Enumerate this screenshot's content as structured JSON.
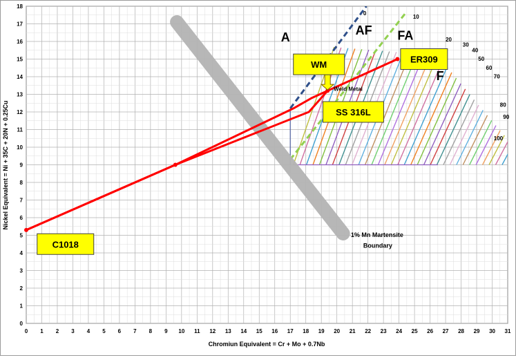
{
  "chart_data": {
    "type": "line",
    "title": "",
    "xlabel": "Chromiun Equivalent = Cr + Mo + 0.7Nb",
    "ylabel": "Nickel Equivalent = Ni + 35C + 20N + 0.25Cu",
    "xlim": [
      0,
      31
    ],
    "ylim": [
      0,
      18
    ],
    "x_ticks": [
      "0",
      "1",
      "2",
      "3",
      "4",
      "5",
      "6",
      "7",
      "8",
      "9",
      "10",
      "11",
      "12",
      "13",
      "14",
      "15",
      "16",
      "17",
      "18",
      "19",
      "20",
      "21",
      "22",
      "23",
      "24",
      "25",
      "26",
      "27",
      "28",
      "29",
      "30",
      "31"
    ],
    "y_ticks": [
      "0",
      "1",
      "2",
      "3",
      "4",
      "5",
      "6",
      "7",
      "8",
      "9",
      "10",
      "11",
      "12",
      "13",
      "14",
      "15",
      "16",
      "17",
      "18"
    ],
    "grid": true,
    "colors": {
      "mixing_line": "#ff0000",
      "martensite_band": "#b4b4b4",
      "callout_fill": "#ffff00",
      "ferrite_lines": [
        "#bfbf40",
        "#d070a0",
        "#40a0d0",
        "#f08020",
        "#80c040",
        "#9060c0",
        "#d04040",
        "#409090",
        "#a0a0a0",
        "#e0b0d0",
        "#60b0e0",
        "#c09060",
        "#70d070",
        "#b070e0",
        "#f0a060"
      ]
    },
    "series": [
      {
        "name": "",
        "points": [
          {
            "x": 0,
            "y": 5.3
          },
          {
            "x": 9.6,
            "y": 9.0
          },
          {
            "x": 17.2,
            "y": 12.2
          },
          {
            "x": 18.4,
            "y": 12.8
          },
          {
            "x": 19.4,
            "y": 13.2
          },
          {
            "x": 23.9,
            "y": 15.0
          }
        ]
      },
      {
        "name": "",
        "points": [
          {
            "x": 0,
            "y": 5.3
          },
          {
            "x": 9.6,
            "y": 9.0
          },
          {
            "x": 18.2,
            "y": 12.0
          },
          {
            "x": 19.4,
            "y": 13.2
          }
        ]
      }
    ],
    "markers": [
      {
        "x": 0,
        "y": 5.3
      },
      {
        "x": 9.6,
        "y": 9.0
      },
      {
        "x": 19.4,
        "y": 13.2
      },
      {
        "x": 23.9,
        "y": 15.0
      }
    ],
    "phase_boundaries": [
      {
        "label": "A",
        "color": "#2e4f8a",
        "dashed": true,
        "from": {
          "x": 17,
          "y": 12.2
        },
        "to": {
          "x": 21.9,
          "y": 18
        }
      },
      {
        "label": "AF",
        "color": "#92d050",
        "dashed": true,
        "from": {
          "x": 17,
          "y": 9.3
        },
        "to": {
          "x": 24.5,
          "y": 17.7
        }
      },
      {
        "label": "FA",
        "color": "",
        "dashed": false,
        "from": {
          "x": 17,
          "y": 9.0
        },
        "to": {
          "x": 26.5,
          "y": 16.4
        }
      },
      {
        "label": "F",
        "color": "",
        "dashed": false,
        "from": {
          "x": 24.0,
          "y": 9.0
        },
        "to": {
          "x": 27.2,
          "y": 14.3
        }
      }
    ],
    "ferrite_number_labels": [
      {
        "text": "0",
        "x": 21.7,
        "y": 17.5
      },
      {
        "text": "10",
        "x": 24.9,
        "y": 17.3
      },
      {
        "text": "20",
        "x": 27.0,
        "y": 16.0
      },
      {
        "text": "30",
        "x": 28.1,
        "y": 15.7
      },
      {
        "text": "40",
        "x": 28.7,
        "y": 15.4
      },
      {
        "text": "50",
        "x": 29.1,
        "y": 14.9
      },
      {
        "text": "60",
        "x": 29.6,
        "y": 14.4
      },
      {
        "text": "70",
        "x": 30.1,
        "y": 13.9
      },
      {
        "text": "80",
        "x": 30.5,
        "y": 12.3
      },
      {
        "text": "90",
        "x": 30.7,
        "y": 11.6
      },
      {
        "text": "100",
        "x": 30.1,
        "y": 10.4
      }
    ],
    "annotations": [
      {
        "text": "Weld Metal",
        "x": 19.8,
        "y": 13.2
      },
      {
        "text": "1% Mn Martensite",
        "x": 20.9,
        "y": 4.9
      },
      {
        "text": "Boundary",
        "x": 21.7,
        "y": 4.3
      }
    ],
    "martensite_band": {
      "from": {
        "x": 9.7,
        "y": 17.1
      },
      "to": {
        "x": 20.4,
        "y": 5.1
      }
    },
    "callouts": [
      {
        "text": "WM",
        "x": 17.2,
        "y": 14.7
      },
      {
        "text": "ER309",
        "x": 24.1,
        "y": 15.0
      },
      {
        "text": "SS 316L",
        "x": 19.1,
        "y": 12.0
      },
      {
        "text": "C1018",
        "x": 0.7,
        "y": 4.5
      }
    ],
    "wm_arrow": {
      "from": {
        "x": 19.4,
        "y": 14.3
      },
      "to": {
        "x": 19.4,
        "y": 13.25
      }
    }
  }
}
